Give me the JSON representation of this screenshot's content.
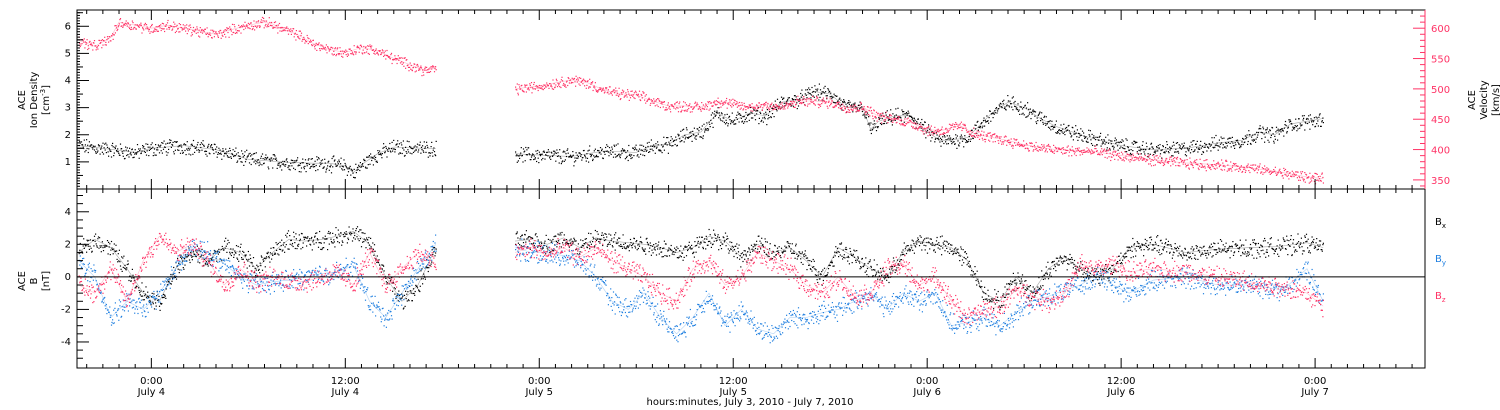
{
  "chart_data": [
    {
      "type": "scatter",
      "panel": "plasma",
      "ylabel_left": [
        "ACE",
        "Ion Density",
        "[cm",
        "-3",
        "]"
      ],
      "ylabel_right": [
        "ACE",
        "Velocity",
        "[km/s]"
      ],
      "ylim": [
        0,
        6.6
      ],
      "yticks_left": [
        1,
        2,
        3,
        4,
        5,
        6
      ],
      "ylim_right": [
        335,
        630
      ],
      "yticks_right": [
        350,
        400,
        450,
        500,
        550,
        600
      ],
      "y_right_minor_step": 10,
      "colors": {
        "density": "#000000",
        "velocity": "#ff3366",
        "axis_right": "#ff3366"
      },
      "series": [
        {
          "name": "Ion Density",
          "axis": "left",
          "color": "#000000",
          "segments": [
            {
              "x": [
                -4.5,
                -3,
                -1,
                0,
                2,
                4,
                6,
                8,
                10,
                11,
                12,
                12.5,
                13,
                14,
                15,
                16.8,
                17.6
              ],
              "y": [
                1.6,
                1.5,
                1.35,
                1.5,
                1.6,
                1.45,
                1.1,
                1.0,
                0.95,
                0.95,
                0.85,
                0.6,
                0.9,
                1.3,
                1.55,
                1.5,
                1.5
              ]
            },
            {
              "x": [
                22.5,
                24,
                26,
                27,
                28,
                30,
                31,
                32,
                33,
                34,
                35,
                36,
                37,
                38,
                39,
                40,
                41,
                42,
                43,
                44,
                44.5,
                45,
                46,
                47,
                48,
                48.8,
                49.5,
                50.5,
                52,
                53,
                54,
                55,
                56,
                57,
                58,
                60,
                62,
                64,
                66,
                67.5,
                68.5,
                69.5,
                70.5,
                71.5,
                72.5
              ],
              "y": [
                1.3,
                1.25,
                1.2,
                1.3,
                1.4,
                1.35,
                1.6,
                1.65,
                2.0,
                2.1,
                2.8,
                2.5,
                2.8,
                2.7,
                3.2,
                3.3,
                3.6,
                3.5,
                3.0,
                3.0,
                2.2,
                2.5,
                2.7,
                2.7,
                2.1,
                1.8,
                1.8,
                1.9,
                2.8,
                3.2,
                3.0,
                2.6,
                2.3,
                2.1,
                1.9,
                1.6,
                1.45,
                1.5,
                1.7,
                1.8,
                2.1,
                2.0,
                2.4,
                2.5,
                2.6
              ]
            }
          ]
        },
        {
          "name": "Velocity",
          "axis": "right",
          "color": "#ff3366",
          "segments": [
            {
              "x": [
                -4.5,
                -3.5,
                -2.5,
                -2,
                -1,
                0,
                1,
                2,
                3,
                4,
                5,
                6,
                7,
                7.5,
                8,
                9,
                10,
                11,
                12,
                13,
                14,
                15,
                16,
                17,
                17.6
              ],
              "y": [
                580,
                570,
                585,
                610,
                605,
                600,
                605,
                600,
                595,
                590,
                598,
                605,
                610,
                607,
                600,
                590,
                575,
                565,
                560,
                568,
                563,
                550,
                540,
                530,
                535
              ]
            },
            {
              "x": [
                22.5,
                24,
                25,
                26,
                27,
                28,
                29,
                30,
                31,
                32,
                33,
                34,
                35,
                36,
                37,
                38,
                39,
                40,
                41,
                42,
                43,
                44,
                45,
                46,
                47,
                48,
                49,
                50,
                51,
                52,
                53,
                54,
                55,
                56,
                57,
                58,
                60,
                62,
                64,
                66,
                68,
                70,
                71.5,
                72.5
              ],
              "y": [
                500,
                505,
                510,
                515,
                510,
                498,
                492,
                490,
                480,
                472,
                472,
                470,
                480,
                475,
                470,
                475,
                470,
                480,
                480,
                478,
                470,
                470,
                455,
                450,
                445,
                432,
                432,
                440,
                425,
                420,
                415,
                408,
                403,
                400,
                398,
                398,
                390,
                383,
                378,
                375,
                370,
                362,
                355,
                352
              ]
            }
          ]
        }
      ]
    },
    {
      "type": "scatter",
      "panel": "magnetic-field",
      "ylabel_left": [
        "ACE",
        "B",
        "[nT]"
      ],
      "ylim": [
        -5.6,
        5.4
      ],
      "yticks_left": [
        -4,
        -2,
        0,
        2,
        4
      ],
      "zero_line": true,
      "legend": [
        "B",
        "B",
        "B"
      ],
      "legend_subscripts": [
        "x",
        "y",
        "z"
      ],
      "legend_placement": "right",
      "series": [
        {
          "name": "Bx",
          "color": "#000000",
          "segments": [
            {
              "x": [
                -4.5,
                -3.5,
                -2.5,
                -1.5,
                -0.5,
                0.5,
                1.5,
                2.5,
                3.5,
                4.5,
                5.5,
                6.5,
                7.5,
                8.5,
                9.5,
                10.5,
                11.5,
                12.5,
                13.5,
                14.5,
                15.5,
                16.5,
                17.6
              ],
              "y": [
                1.5,
                2.3,
                1.8,
                0.5,
                -1.0,
                -1.5,
                0.5,
                1.5,
                1.0,
                1.8,
                1.5,
                0.5,
                1.5,
                2.3,
                2.2,
                2.3,
                2.5,
                2.8,
                2.0,
                0.0,
                -1.5,
                -0.5,
                1.8
              ]
            },
            {
              "x": [
                22.5,
                23.5,
                24.5,
                25.5,
                26.5,
                27.5,
                28.5,
                29.5,
                30.5,
                31.5,
                32.5,
                33.5,
                34.5,
                35.5,
                36.5,
                37.5,
                38.5,
                39.5,
                40.5,
                41.5,
                42.5,
                43.5,
                44.5,
                45.5,
                46.5,
                47.5,
                48.5,
                49.5,
                50.5,
                51.5,
                52.5,
                53.5,
                54.5,
                55.5,
                56.5,
                57.5,
                58.5,
                59.5,
                60.5,
                62,
                64,
                66,
                68,
                70,
                71.5,
                72.5
              ],
              "y": [
                2.2,
                2.3,
                2.0,
                2.4,
                1.8,
                2.4,
                2.2,
                2.1,
                2.0,
                1.8,
                1.5,
                1.8,
                2.5,
                2.2,
                1.2,
                2.0,
                1.5,
                1.8,
                1.0,
                0.0,
                1.8,
                1.2,
                0.5,
                0.0,
                1.5,
                2.2,
                2.0,
                1.8,
                1.0,
                -1.0,
                -1.5,
                0.0,
                -1.0,
                0.5,
                1.2,
                0.5,
                0.0,
                0.5,
                1.8,
                2.0,
                1.5,
                1.7,
                1.8,
                1.9,
                2.1,
                1.8
              ]
            }
          ]
        },
        {
          "name": "By",
          "color": "#1f7fe0",
          "segments": [
            {
              "x": [
                -4.5,
                -3.5,
                -2.5,
                -1.5,
                -0.5,
                0.5,
                1.5,
                2.5,
                3.5,
                4.5,
                5.5,
                6.5,
                7.5,
                8.5,
                9.5,
                10.5,
                11.5,
                12.5,
                13.5,
                14.5,
                15.5,
                16.5,
                17.6
              ],
              "y": [
                1.0,
                0.0,
                -2.5,
                -1.5,
                -2.0,
                -1.0,
                0.5,
                1.8,
                1.5,
                0.8,
                0.0,
                -0.5,
                -0.3,
                -0.2,
                0.0,
                0.2,
                0.3,
                0.7,
                -1.5,
                -2.5,
                -1.0,
                0.5,
                2.0
              ]
            },
            {
              "x": [
                22.5,
                23.5,
                24.5,
                25.5,
                26.5,
                27.5,
                28.5,
                29.5,
                30.5,
                31.5,
                32.5,
                33.5,
                34.5,
                35.5,
                36.5,
                37.5,
                38.5,
                39.5,
                40.5,
                41.5,
                42.5,
                43.5,
                44.5,
                45.5,
                46.5,
                47.5,
                48.5,
                49.5,
                50.5,
                51.5,
                52.5,
                53.5,
                54.5,
                55.5,
                56.5,
                57.5,
                58.5,
                59.5,
                60.5,
                62,
                64,
                66,
                68,
                70,
                71.5,
                72.5
              ],
              "y": [
                1.8,
                1.5,
                1.5,
                1.3,
                1.0,
                0.0,
                -1.5,
                -2.0,
                -1.0,
                -2.5,
                -3.5,
                -2.5,
                -1.0,
                -3.0,
                -2.0,
                -3.2,
                -3.5,
                -2.5,
                -2.5,
                -2.2,
                -2.0,
                -1.5,
                -1.0,
                -2.0,
                -1.0,
                -1.5,
                -1.0,
                -3.0,
                -2.8,
                -2.5,
                -3.0,
                -2.2,
                -1.5,
                -1.2,
                -0.8,
                -0.5,
                0.2,
                -0.5,
                -1.0,
                -0.2,
                0.0,
                -0.5,
                -0.5,
                -0.8,
                0.5,
                -1.5
              ]
            }
          ]
        },
        {
          "name": "Bz",
          "color": "#ff3366",
          "segments": [
            {
              "x": [
                -4.5,
                -3.5,
                -2.5,
                -1.5,
                -0.5,
                0.5,
                1.5,
                2.5,
                3.5,
                4.5,
                5.5,
                6.5,
                7.5,
                8.5,
                9.5,
                10.5,
                11.5,
                12.5,
                13.5,
                14.5,
                15.5,
                16.5,
                17.6
              ],
              "y": [
                -0.5,
                -1.0,
                0.5,
                -1.5,
                1.0,
                2.5,
                1.5,
                2.0,
                1.0,
                -0.5,
                0.5,
                -0.3,
                0.0,
                -0.2,
                -0.3,
                0.0,
                0.3,
                -0.5,
                1.5,
                -0.5,
                0.5,
                1.5,
                0.8
              ]
            },
            {
              "x": [
                22.5,
                23.5,
                24.5,
                25.5,
                26.5,
                27.5,
                28.5,
                29.5,
                30.5,
                31.5,
                32.5,
                33.5,
                34.5,
                35.5,
                36.5,
                37.5,
                38.5,
                39.5,
                40.5,
                41.5,
                42.5,
                43.5,
                44.5,
                45.5,
                46.5,
                47.5,
                48.5,
                49.5,
                50.5,
                51.5,
                52.5,
                53.5,
                54.5,
                55.5,
                56.5,
                57.5,
                58.5,
                59.5,
                60.5,
                62,
                64,
                66,
                68,
                70,
                71.5,
                72.5
              ],
              "y": [
                1.5,
                1.8,
                1.4,
                1.8,
                1.2,
                1.8,
                1.0,
                0.5,
                0.0,
                -1.0,
                -1.5,
                0.5,
                1.0,
                -0.5,
                0.0,
                1.5,
                1.0,
                0.5,
                -0.5,
                -1.0,
                0.0,
                -1.2,
                -1.0,
                0.5,
                0.8,
                -0.5,
                0.0,
                -1.5,
                -2.5,
                -2.0,
                -1.8,
                -0.8,
                -1.2,
                -1.5,
                -1.0,
                0.8,
                0.5,
                0.8,
                0.3,
                0.5,
                0.3,
                0.0,
                -0.3,
                -0.6,
                -1.0,
                -1.8
              ]
            }
          ]
        }
      ]
    }
  ],
  "x_axis": {
    "xlim": [
      -4.6,
      78.8
    ],
    "tick_hours": [
      0,
      12,
      24,
      36,
      48,
      60,
      72
    ],
    "tick_labels": [
      "0:00",
      "12:00",
      "0:00",
      "12:00",
      "0:00",
      "12:00",
      "0:00"
    ],
    "date_labels": [
      "July 4",
      "July 4",
      "July 5",
      "July 5",
      "July 6",
      "July 6",
      "July 7"
    ],
    "minor_step_hours": 1,
    "title": "hours:minutes,  July  3, 2010  -  July  7, 2010"
  }
}
